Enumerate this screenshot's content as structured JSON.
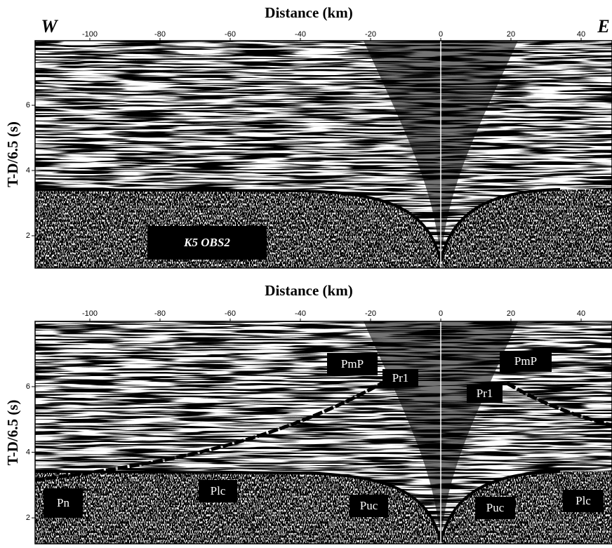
{
  "chart_data": [
    {
      "type": "seismic-section",
      "title": "Distance (km)",
      "y_label": "T-D/6.5 (s)",
      "left_label": "W",
      "right_label": "E",
      "xlim": [
        -115.6,
        48.8
      ],
      "ylim": [
        1.01,
        7.98
      ],
      "xticks": [
        -100,
        -80,
        -60,
        -40,
        -20,
        0,
        20,
        40
      ],
      "yticks": [
        2,
        4,
        6
      ],
      "annotations": [
        "K5 OBS2"
      ]
    },
    {
      "type": "seismic-section",
      "title": "Distance (km)",
      "y_label": "T-D/6.5 (s)",
      "xlim": [
        -115.6,
        48.8
      ],
      "ylim": [
        1.21,
        7.99
      ],
      "xticks": [
        -100,
        -80,
        -60,
        -40,
        -20,
        0,
        20,
        40
      ],
      "yticks": [
        2,
        4,
        6
      ],
      "annotations": [
        "PmP",
        "Pr1",
        "Pr1",
        "PmP",
        "Pn",
        "Plc",
        "Puc",
        "Puc",
        "Plc"
      ]
    }
  ]
}
